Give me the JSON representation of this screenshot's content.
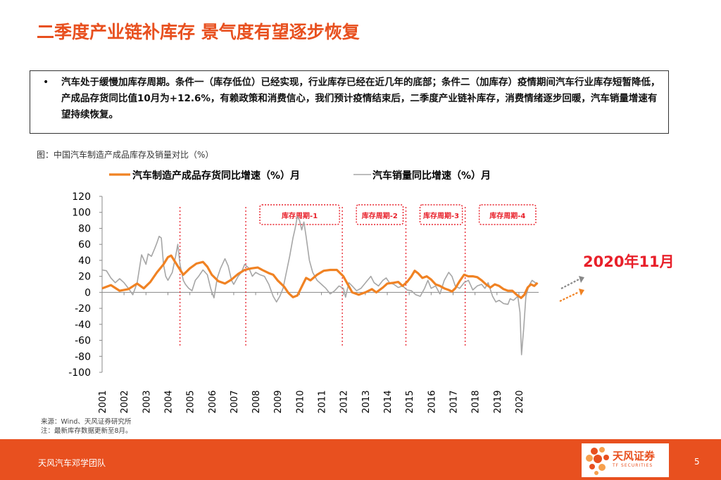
{
  "slide": {
    "title": "二季度产业链补库存 景气度有望逐步恢复",
    "bullet_symbol": "•",
    "bullet_text": "汽车处于缓慢加库存周期。条件一（库存低位）已经实现，行业库存已经在近几年的底部；条件二（加库存）疫情期间汽车行业库存短暂降低，产成品存货同比值10月为+12.6%，有赖政策和消费信心，我们预计疫情结束后，二季度产业链补库存，消费情绪逐步回暖，汽车销量增速有望持续恢复。",
    "figure_caption": "图：中国汽车制造产成品库存及销量对比（%）",
    "source_line1": "来源：Wind、天风证券研究所",
    "source_line2": "注：最新库存数据更新至8月。",
    "footer_left": "天风汽车邓学团队",
    "page_number": "5",
    "logo_name": "天风证券",
    "logo_sub": "TF SECURITIES"
  },
  "chart_data": {
    "type": "line",
    "x_range": [
      "2001-01",
      "2020-11"
    ],
    "ylim": [
      -100,
      120
    ],
    "yticks": [
      120,
      100,
      80,
      60,
      40,
      20,
      0,
      -20,
      -40,
      -60,
      -80,
      -100
    ],
    "xticks": [
      "2001",
      "2002",
      "2003",
      "2004",
      "2005",
      "2006",
      "2007",
      "2008",
      "2009",
      "2010",
      "2011",
      "2012",
      "2013",
      "2014",
      "2015",
      "2016",
      "2017",
      "2018",
      "2019",
      "2020"
    ],
    "series": [
      {
        "name": "汽车制造产成品存货同比增速（%）月",
        "color": "#F08223",
        "points": [
          [
            2001.0,
            5
          ],
          [
            2001.4,
            9
          ],
          [
            2001.8,
            2
          ],
          [
            2002.2,
            4
          ],
          [
            2002.6,
            11
          ],
          [
            2002.9,
            5
          ],
          [
            2003.2,
            13
          ],
          [
            2003.5,
            25
          ],
          [
            2003.8,
            35
          ],
          [
            2004.0,
            44
          ],
          [
            2004.15,
            46
          ],
          [
            2004.4,
            35
          ],
          [
            2004.7,
            22
          ],
          [
            2005.0,
            30
          ],
          [
            2005.3,
            36
          ],
          [
            2005.6,
            38
          ],
          [
            2005.8,
            32
          ],
          [
            2006.0,
            22
          ],
          [
            2006.3,
            14
          ],
          [
            2006.6,
            11
          ],
          [
            2006.9,
            16
          ],
          [
            2007.2,
            23
          ],
          [
            2007.5,
            28
          ],
          [
            2007.8,
            30
          ],
          [
            2008.1,
            31
          ],
          [
            2008.3,
            28
          ],
          [
            2008.6,
            24
          ],
          [
            2008.8,
            22
          ],
          [
            2009.0,
            15
          ],
          [
            2009.3,
            7
          ],
          [
            2009.5,
            -1
          ],
          [
            2009.7,
            -6
          ],
          [
            2009.9,
            -4
          ],
          [
            2010.1,
            7
          ],
          [
            2010.3,
            18
          ],
          [
            2010.5,
            15
          ],
          [
            2010.8,
            22
          ],
          [
            2011.1,
            27
          ],
          [
            2011.4,
            28
          ],
          [
            2011.7,
            28
          ],
          [
            2012.0,
            20
          ],
          [
            2012.2,
            10
          ],
          [
            2012.4,
            0
          ],
          [
            2012.7,
            -3
          ],
          [
            2013.0,
            0
          ],
          [
            2013.3,
            4
          ],
          [
            2013.5,
            0
          ],
          [
            2013.8,
            6
          ],
          [
            2014.0,
            11
          ],
          [
            2014.3,
            12
          ],
          [
            2014.5,
            13
          ],
          [
            2014.7,
            8
          ],
          [
            2014.9,
            13
          ],
          [
            2015.1,
            20
          ],
          [
            2015.25,
            27
          ],
          [
            2015.4,
            24
          ],
          [
            2015.6,
            18
          ],
          [
            2015.8,
            20
          ],
          [
            2016.0,
            16
          ],
          [
            2016.2,
            10
          ],
          [
            2016.4,
            8
          ],
          [
            2016.6,
            5
          ],
          [
            2016.8,
            3
          ],
          [
            2016.95,
            1
          ],
          [
            2017.1,
            5
          ],
          [
            2017.3,
            14
          ],
          [
            2017.5,
            22
          ],
          [
            2017.7,
            20
          ],
          [
            2017.9,
            20
          ],
          [
            2018.1,
            19
          ],
          [
            2018.3,
            15
          ],
          [
            2018.5,
            10
          ],
          [
            2018.7,
            6
          ],
          [
            2018.9,
            10
          ],
          [
            2019.1,
            8
          ],
          [
            2019.3,
            4
          ],
          [
            2019.5,
            2
          ],
          [
            2019.7,
            2
          ],
          [
            2019.9,
            -3
          ],
          [
            2020.1,
            -7
          ],
          [
            2020.25,
            -3
          ],
          [
            2020.4,
            6
          ],
          [
            2020.55,
            10
          ],
          [
            2020.7,
            8
          ],
          [
            2020.85,
            12
          ]
        ]
      },
      {
        "name": "汽车销量同比增速（%）月",
        "color": "#A6A6A6",
        "points": [
          [
            2001.0,
            28
          ],
          [
            2001.2,
            27
          ],
          [
            2001.4,
            18
          ],
          [
            2001.6,
            12
          ],
          [
            2001.8,
            17
          ],
          [
            2002.0,
            12
          ],
          [
            2002.2,
            5
          ],
          [
            2002.4,
            -3
          ],
          [
            2002.6,
            12
          ],
          [
            2002.8,
            47
          ],
          [
            2003.0,
            35
          ],
          [
            2003.1,
            48
          ],
          [
            2003.25,
            45
          ],
          [
            2003.4,
            55
          ],
          [
            2003.5,
            62
          ],
          [
            2003.6,
            70
          ],
          [
            2003.7,
            68
          ],
          [
            2003.8,
            35
          ],
          [
            2003.9,
            20
          ],
          [
            2004.0,
            15
          ],
          [
            2004.2,
            25
          ],
          [
            2004.35,
            45
          ],
          [
            2004.45,
            60
          ],
          [
            2004.55,
            35
          ],
          [
            2004.7,
            15
          ],
          [
            2004.8,
            10
          ],
          [
            2004.95,
            5
          ],
          [
            2005.1,
            2
          ],
          [
            2005.25,
            15
          ],
          [
            2005.4,
            20
          ],
          [
            2005.6,
            28
          ],
          [
            2005.8,
            22
          ],
          [
            2005.95,
            5
          ],
          [
            2006.1,
            -7
          ],
          [
            2006.25,
            18
          ],
          [
            2006.4,
            30
          ],
          [
            2006.6,
            42
          ],
          [
            2006.75,
            33
          ],
          [
            2006.9,
            15
          ],
          [
            2007.0,
            10
          ],
          [
            2007.2,
            20
          ],
          [
            2007.35,
            25
          ],
          [
            2007.5,
            35
          ],
          [
            2007.7,
            30
          ],
          [
            2007.85,
            20
          ],
          [
            2008.0,
            25
          ],
          [
            2008.2,
            22
          ],
          [
            2008.4,
            20
          ],
          [
            2008.6,
            10
          ],
          [
            2008.8,
            -5
          ],
          [
            2008.95,
            -12
          ],
          [
            2009.1,
            -5
          ],
          [
            2009.25,
            5
          ],
          [
            2009.4,
            25
          ],
          [
            2009.55,
            45
          ],
          [
            2009.7,
            68
          ],
          [
            2009.8,
            80
          ],
          [
            2009.9,
            95
          ],
          [
            2010.0,
            90
          ],
          [
            2010.1,
            78
          ],
          [
            2010.2,
            88
          ],
          [
            2010.3,
            70
          ],
          [
            2010.45,
            40
          ],
          [
            2010.6,
            25
          ],
          [
            2010.8,
            15
          ],
          [
            2011.0,
            10
          ],
          [
            2011.2,
            5
          ],
          [
            2011.4,
            -2
          ],
          [
            2011.6,
            2
          ],
          [
            2011.8,
            8
          ],
          [
            2012.0,
            5
          ],
          [
            2012.1,
            -6
          ],
          [
            2012.25,
            12
          ],
          [
            2012.4,
            8
          ],
          [
            2012.6,
            2
          ],
          [
            2012.8,
            5
          ],
          [
            2012.95,
            10
          ],
          [
            2013.1,
            15
          ],
          [
            2013.25,
            20
          ],
          [
            2013.4,
            12
          ],
          [
            2013.6,
            8
          ],
          [
            2013.8,
            15
          ],
          [
            2013.95,
            18
          ],
          [
            2014.1,
            12
          ],
          [
            2014.3,
            10
          ],
          [
            2014.5,
            6
          ],
          [
            2014.7,
            8
          ],
          [
            2014.9,
            3
          ],
          [
            2015.1,
            2
          ],
          [
            2015.3,
            -3
          ],
          [
            2015.5,
            -5
          ],
          [
            2015.7,
            5
          ],
          [
            2015.85,
            15
          ],
          [
            2016.0,
            5
          ],
          [
            2016.2,
            8
          ],
          [
            2016.4,
            -2
          ],
          [
            2016.6,
            15
          ],
          [
            2016.8,
            25
          ],
          [
            2016.95,
            20
          ],
          [
            2017.1,
            8
          ],
          [
            2017.3,
            5
          ],
          [
            2017.5,
            12
          ],
          [
            2017.7,
            15
          ],
          [
            2017.9,
            3
          ],
          [
            2018.1,
            8
          ],
          [
            2018.3,
            10
          ],
          [
            2018.45,
            5
          ],
          [
            2018.6,
            12
          ],
          [
            2018.8,
            -5
          ],
          [
            2018.95,
            -12
          ],
          [
            2019.1,
            -10
          ],
          [
            2019.3,
            -14
          ],
          [
            2019.5,
            -15
          ],
          [
            2019.6,
            -8
          ],
          [
            2019.75,
            -10
          ],
          [
            2019.95,
            -5
          ],
          [
            2020.05,
            -25
          ],
          [
            2020.12,
            -78
          ],
          [
            2020.22,
            -45
          ],
          [
            2020.32,
            -5
          ],
          [
            2020.45,
            8
          ],
          [
            2020.6,
            15
          ],
          [
            2020.75,
            12
          ],
          [
            2020.85,
            10
          ]
        ]
      }
    ],
    "cycles": [
      {
        "label": "库存周期-1",
        "x_from": 2007.55,
        "x_to": 2011.95
      },
      {
        "label": "库存周期-2",
        "x_from": 2011.95,
        "x_to": 2014.85
      },
      {
        "label": "库存周期-3",
        "x_from": 2014.85,
        "x_to": 2017.55
      },
      {
        "label": "库存周期-4",
        "x_from": 2017.55,
        "x_to": 2020.9
      }
    ],
    "dividers": [
      2004.55,
      2007.55,
      2011.95,
      2014.85,
      2017.55
    ],
    "annotation": "2020年11月"
  }
}
